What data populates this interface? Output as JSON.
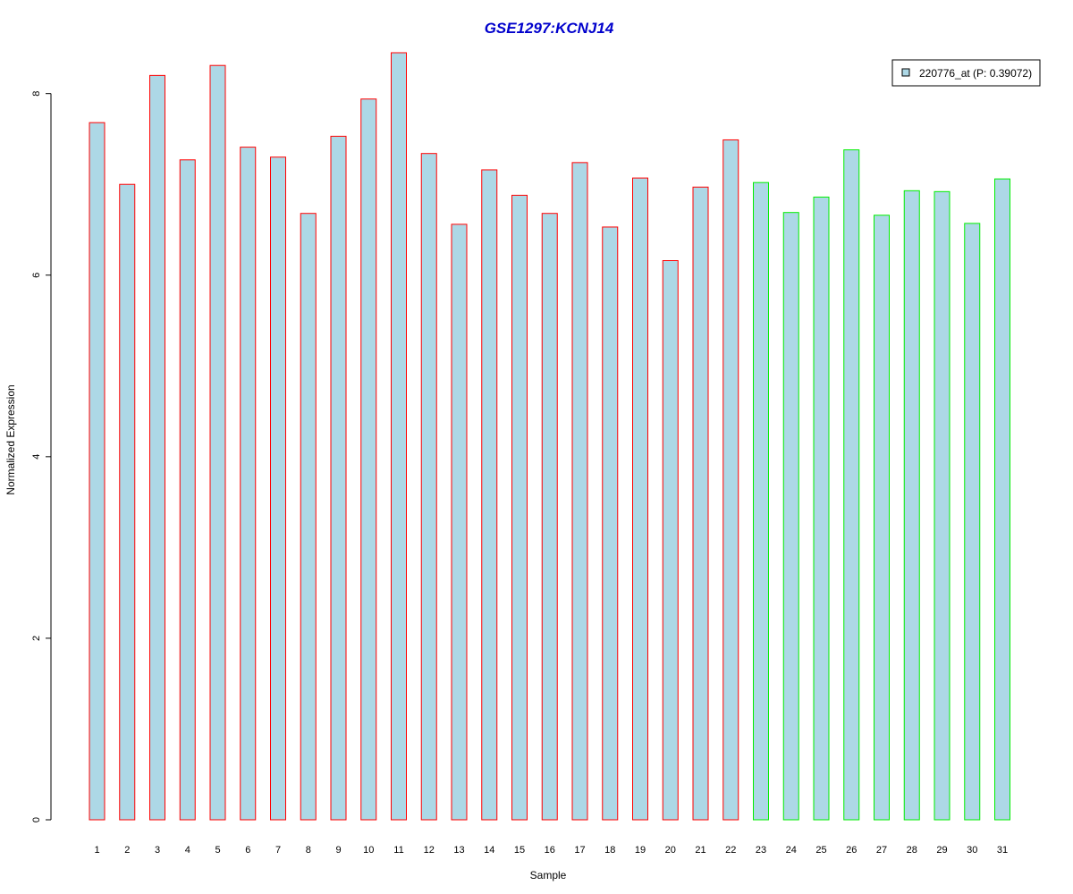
{
  "chart_data": {
    "type": "bar",
    "title": "GSE1297:KCNJ14",
    "xlabel": "Sample",
    "ylabel": "Normalized Expression",
    "ylim": [
      0,
      8.44
    ],
    "yticks": [
      0,
      2,
      4,
      6,
      8
    ],
    "grid": false,
    "legend_position": "top-right",
    "categories": [
      "1",
      "2",
      "3",
      "4",
      "5",
      "6",
      "7",
      "8",
      "9",
      "10",
      "11",
      "12",
      "13",
      "14",
      "15",
      "16",
      "17",
      "18",
      "19",
      "20",
      "21",
      "22",
      "23",
      "24",
      "25",
      "26",
      "27",
      "28",
      "29",
      "30",
      "31"
    ],
    "series": [
      {
        "name": "220776_at (P: 0.39072)",
        "fill_color": "#add8e6",
        "values": [
          7.68,
          7.0,
          8.2,
          7.27,
          8.31,
          7.41,
          7.3,
          6.68,
          7.53,
          7.94,
          8.45,
          7.34,
          6.56,
          7.16,
          6.88,
          6.68,
          7.24,
          6.53,
          7.07,
          6.16,
          6.97,
          7.49,
          7.02,
          6.69,
          6.86,
          7.38,
          6.66,
          6.93,
          6.92,
          6.57,
          7.06
        ]
      }
    ],
    "border_colors": [
      "#ff0000",
      "#ff0000",
      "#ff0000",
      "#ff0000",
      "#ff0000",
      "#ff0000",
      "#ff0000",
      "#ff0000",
      "#ff0000",
      "#ff0000",
      "#ff0000",
      "#ff0000",
      "#ff0000",
      "#ff0000",
      "#ff0000",
      "#ff0000",
      "#ff0000",
      "#ff0000",
      "#ff0000",
      "#ff0000",
      "#ff0000",
      "#ff0000",
      "#00ee00",
      "#00ee00",
      "#00ee00",
      "#00ee00",
      "#00ee00",
      "#00ee00",
      "#00ee00",
      "#00ee00",
      "#00ee00"
    ]
  }
}
